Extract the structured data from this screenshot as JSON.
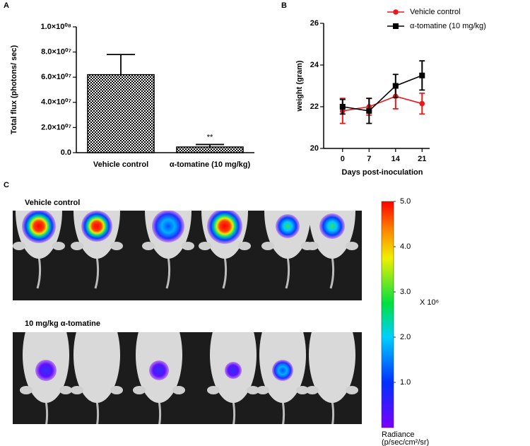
{
  "chart_data": [
    {
      "type": "bar",
      "panel": "A",
      "ylabel": "Total flux (photons/ sec)",
      "categories": [
        "Vehicle control",
        "α-tomatine (10 mg/kg)"
      ],
      "values": [
        62000000,
        4500000
      ],
      "errors": [
        16000000,
        2000000
      ],
      "color": "#000000",
      "annotation": "**",
      "ylim": [
        0,
        100000000
      ],
      "yticks": [
        {
          "value": 0,
          "label": "0.0"
        },
        {
          "value": 20000000,
          "label": "2.0×10⁰⁷"
        },
        {
          "value": 40000000,
          "label": "4.0×10⁰⁷"
        },
        {
          "value": 60000000,
          "label": "6.0×10⁰⁷"
        },
        {
          "value": 80000000,
          "label": "8.0×10⁰⁷"
        },
        {
          "value": 100000000,
          "label": "1.0×10⁰⁸"
        }
      ]
    },
    {
      "type": "line",
      "panel": "B",
      "xlabel": "Days post-inoculation",
      "ylabel": "weight (gram)",
      "x": [
        0,
        7,
        14,
        21
      ],
      "xlim": [
        -5,
        23
      ],
      "xticks": [
        0,
        7,
        14,
        21
      ],
      "ylim": [
        20,
        26
      ],
      "yticks": [
        20,
        22,
        24,
        26
      ],
      "legend": "top-right",
      "series": [
        {
          "name": "Vehicle control",
          "color": "#e8191b",
          "marker": "circle",
          "values": [
            21.8,
            22.0,
            22.5,
            22.15
          ],
          "errors": [
            0.6,
            0.4,
            0.6,
            0.5
          ]
        },
        {
          "name": "α-tomatine (10 mg/kg)",
          "color": "#000000",
          "marker": "square",
          "values": [
            22.0,
            21.8,
            23.0,
            23.5
          ],
          "errors": [
            0.35,
            0.6,
            0.55,
            0.7
          ]
        }
      ]
    }
  ],
  "panel_c": {
    "label": "C",
    "groups": [
      "Vehicle control",
      "10 mg/kg α-tomatine"
    ],
    "colorbar": {
      "ylim": [
        0,
        5
      ],
      "ticks": [
        {
          "value": 1,
          "label": "1.0"
        },
        {
          "value": 2,
          "label": "2.0"
        },
        {
          "value": 3,
          "label": "3.0"
        },
        {
          "value": 4,
          "label": "4.0"
        },
        {
          "value": 5,
          "label": "5.0"
        }
      ],
      "multiplier": "X 10⁶",
      "title": "Radiance",
      "units": "(p/sec/cm²/sr)"
    }
  }
}
